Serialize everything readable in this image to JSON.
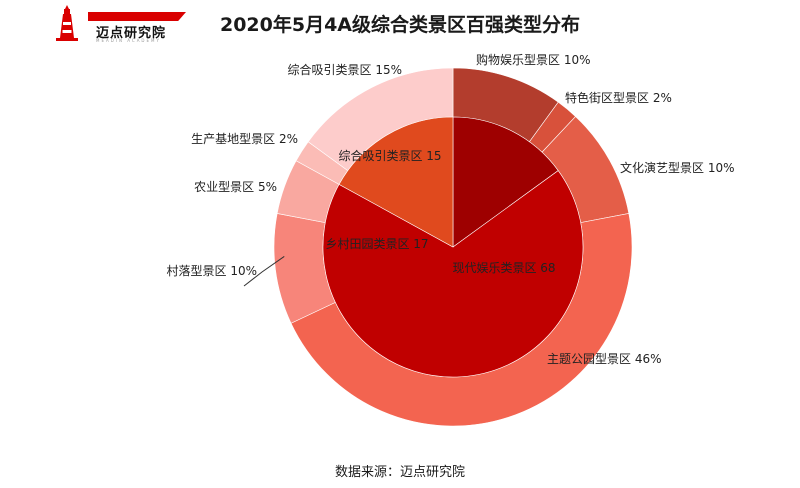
{
  "logo": {
    "name": "迈点研究院",
    "tagline": "MEADIN ACADEMY"
  },
  "colors": {
    "brand": "#d90000"
  },
  "source": "数据来源：迈点研究院",
  "chart_data": {
    "type": "pie",
    "title": "2020年5月4A级综合类景区百强类型分布",
    "inner": {
      "slices": [
        {
          "label": "综合吸引类景区",
          "value": 15,
          "display": "综合吸引类景区 15",
          "color": "#9e0000"
        },
        {
          "label": "现代娱乐类景区",
          "value": 68,
          "display": "现代娱乐类景区 68",
          "color": "#c00000"
        },
        {
          "label": "乡村田园类景区",
          "value": 17,
          "display": "乡村田园类景区 17",
          "color": "#e04a1e"
        }
      ]
    },
    "outer": {
      "slices": [
        {
          "label": "购物娱乐型景区",
          "value": 10,
          "display": "购物娱乐型景区 10%",
          "color": "#b33d2d"
        },
        {
          "label": "特色街区型景区",
          "value": 2,
          "display": "特色街区型景区 2%",
          "color": "#d8513b"
        },
        {
          "label": "文化演艺型景区",
          "value": 10,
          "display": "文化演艺型景区 10%",
          "color": "#e45e48"
        },
        {
          "label": "主题公园型景区",
          "value": 46,
          "display": "主题公园型景区 46%",
          "color": "#f36450"
        },
        {
          "label": "村落型景区",
          "value": 10,
          "display": "村落型景区 10%",
          "color": "#f7857a"
        },
        {
          "label": "农业型景区",
          "value": 5,
          "display": "农业型景区 5%",
          "color": "#f9a8a0"
        },
        {
          "label": "生产基地型景区",
          "value": 2,
          "display": "生产基地型景区 2%",
          "color": "#fbbcb6"
        },
        {
          "label": "综合吸引类景区",
          "value": 15,
          "display": "综合吸引类景区 15%",
          "color": "#fdcccb"
        }
      ]
    }
  }
}
